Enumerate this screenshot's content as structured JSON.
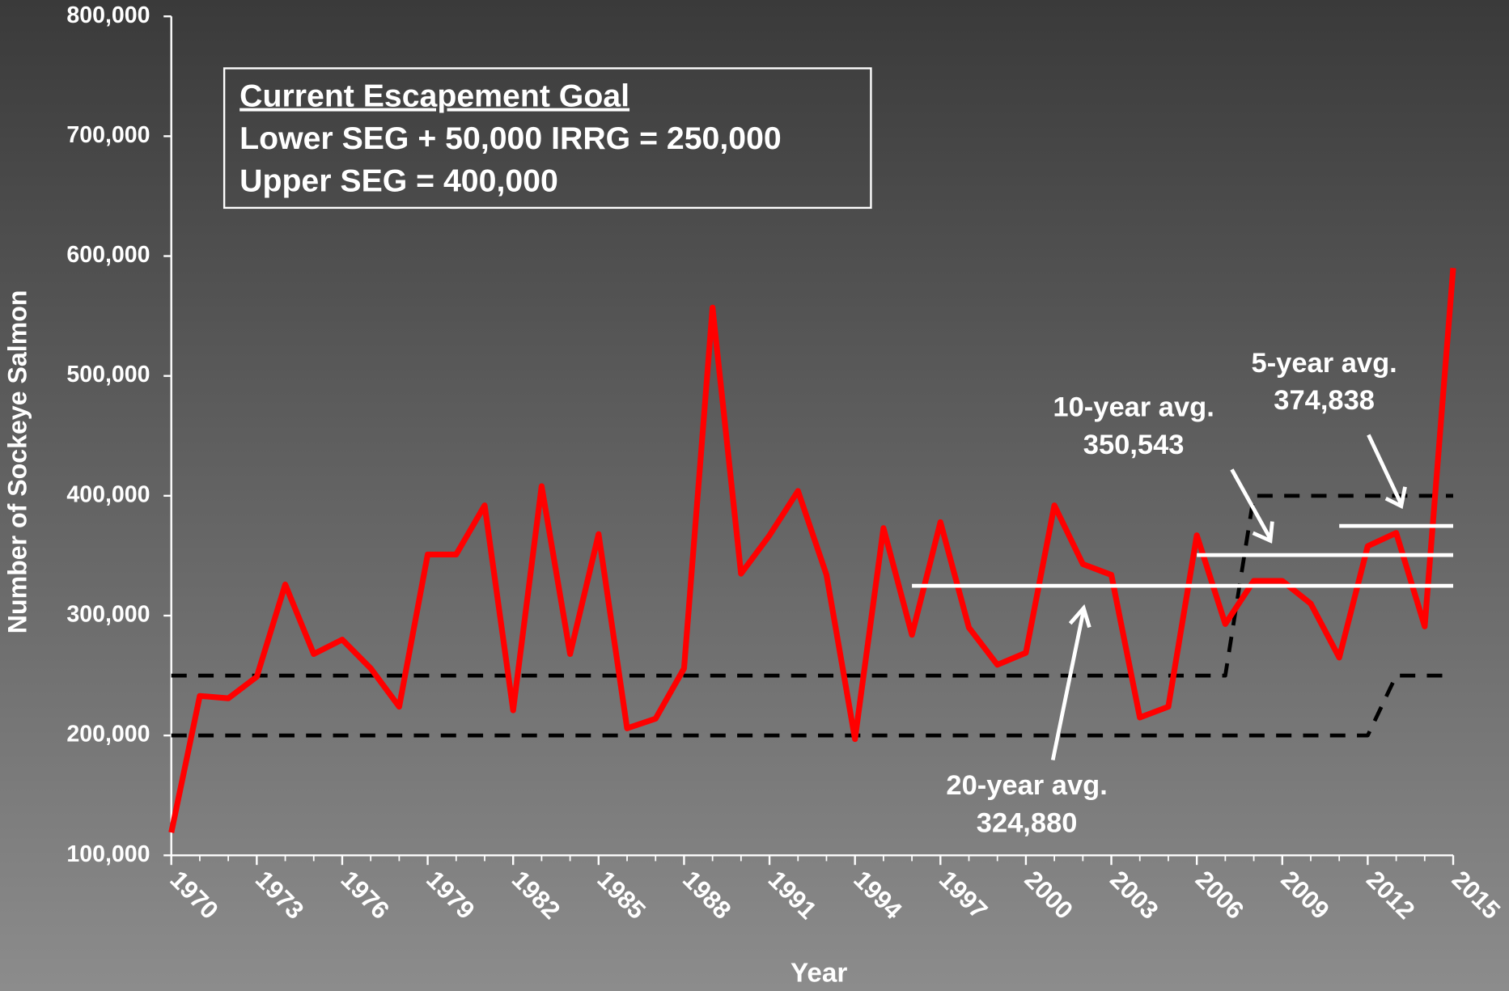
{
  "chart_data": {
    "type": "line",
    "xlabel": "Year",
    "ylabel": "Number of Sockeye Salmon",
    "x": [
      1970,
      1971,
      1972,
      1973,
      1974,
      1975,
      1976,
      1977,
      1978,
      1979,
      1980,
      1981,
      1982,
      1983,
      1984,
      1985,
      1986,
      1987,
      1988,
      1989,
      1990,
      1991,
      1992,
      1993,
      1994,
      1995,
      1996,
      1997,
      1998,
      1999,
      2000,
      2001,
      2002,
      2003,
      2004,
      2005,
      2006,
      2007,
      2008,
      2009,
      2010,
      2011,
      2012,
      2013,
      2014,
      2015
    ],
    "series": [
      {
        "color": "#ff0000",
        "width": 6,
        "values": [
          119000,
          233000,
          231000,
          249000,
          326000,
          268000,
          280000,
          256000,
          224000,
          351000,
          351000,
          392000,
          221000,
          408000,
          268000,
          368000,
          206000,
          214000,
          256000,
          557000,
          335000,
          367000,
          404000,
          334000,
          197000,
          373000,
          284000,
          378000,
          290000,
          259000,
          269000,
          392000,
          343000,
          334000,
          215000,
          224000,
          367000,
          293000,
          329000,
          329000,
          310000,
          265000,
          358000,
          369000,
          291000,
          590000
        ]
      },
      {
        "color": "#000000",
        "width": 4,
        "dash": true,
        "values": [
          200000,
          200000,
          200000,
          200000,
          200000,
          200000,
          200000,
          200000,
          200000,
          200000,
          200000,
          200000,
          200000,
          200000,
          200000,
          200000,
          200000,
          200000,
          200000,
          200000,
          200000,
          200000,
          200000,
          200000,
          200000,
          200000,
          200000,
          200000,
          200000,
          200000,
          200000,
          200000,
          200000,
          200000,
          200000,
          200000,
          200000,
          200000,
          200000,
          200000,
          200000,
          200000,
          200000,
          250000,
          250000,
          250000
        ]
      },
      {
        "color": "#000000",
        "width": 4,
        "dash": true,
        "values": [
          250000,
          250000,
          250000,
          250000,
          250000,
          250000,
          250000,
          250000,
          250000,
          250000,
          250000,
          250000,
          250000,
          250000,
          250000,
          250000,
          250000,
          250000,
          250000,
          250000,
          250000,
          250000,
          250000,
          250000,
          250000,
          250000,
          250000,
          250000,
          250000,
          250000,
          250000,
          250000,
          250000,
          250000,
          250000,
          250000,
          250000,
          250000,
          400000,
          400000,
          400000,
          400000,
          400000,
          400000,
          400000,
          400000
        ]
      }
    ],
    "averages": [
      {
        "label": "20-year avg.",
        "value": 324880,
        "value_label": "324,880",
        "start": 1996,
        "end": 2015
      },
      {
        "label": "10-year avg.",
        "value": 350543,
        "value_label": "350,543",
        "start": 2006,
        "end": 2015
      },
      {
        "label": "5-year avg.",
        "value": 374838,
        "value_label": "374,838",
        "start": 2011,
        "end": 2015
      }
    ],
    "average_color": "#ffffff",
    "box": {
      "lines": [
        "Current Escapement Goal",
        "Lower SEG + 50,000 IRRG = 250,000",
        "Upper SEG = 400,000"
      ]
    },
    "xlim": [
      1970,
      2015
    ],
    "xticks": [
      1970,
      1973,
      1976,
      1979,
      1982,
      1985,
      1988,
      1991,
      1994,
      1997,
      2000,
      2003,
      2006,
      2009,
      2012,
      2015
    ],
    "ylim": [
      100000,
      800000
    ],
    "yticks": [
      {
        "value": 100000,
        "label": "100,000"
      },
      {
        "value": 200000,
        "label": "200,000"
      },
      {
        "value": 300000,
        "label": "300,000"
      },
      {
        "value": 400000,
        "label": "400,000"
      },
      {
        "value": 500000,
        "label": "500,000"
      },
      {
        "value": 600000,
        "label": "600,000"
      },
      {
        "value": 700000,
        "label": "700,000"
      },
      {
        "value": 800000,
        "label": "800,000"
      }
    ]
  }
}
